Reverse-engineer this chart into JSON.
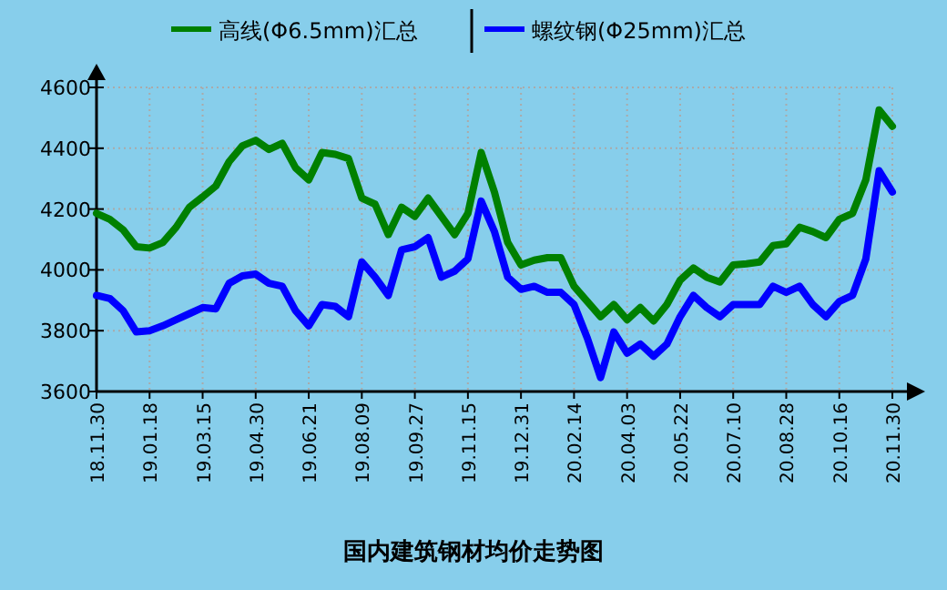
{
  "chart_data": {
    "type": "line",
    "title": "国内建筑钢材均价走势图",
    "categories": [
      "18.11.30",
      null,
      null,
      null,
      "19.01.18",
      null,
      null,
      null,
      "19.03.15",
      null,
      null,
      null,
      "19.04.30",
      null,
      null,
      null,
      "19.06.21",
      null,
      null,
      null,
      "19.08.09",
      null,
      null,
      null,
      "19.09.27",
      null,
      null,
      null,
      "19.11.15",
      null,
      null,
      null,
      "19.12.31",
      null,
      null,
      null,
      "20.02.14",
      null,
      null,
      null,
      "20.04.03",
      null,
      null,
      null,
      "20.05.22",
      null,
      null,
      null,
      "20.07.10",
      null,
      null,
      null,
      "20.08.28",
      null,
      null,
      null,
      "20.10.16",
      null,
      null,
      null,
      "20.11.30"
    ],
    "series": [
      {
        "name": "高线(Φ6.5mm)汇总",
        "color": "#008000",
        "values": [
          4186,
          4166,
          4132,
          4076,
          4072,
          4090,
          4140,
          4206,
          4240,
          4276,
          4356,
          4408,
          4426,
          4396,
          4416,
          4336,
          4296,
          4386,
          4380,
          4366,
          4236,
          4216,
          4116,
          4206,
          4176,
          4236,
          4176,
          4116,
          4186,
          4386,
          4256,
          4090,
          4016,
          4032,
          4040,
          4040,
          3946,
          3896,
          3846,
          3886,
          3836,
          3876,
          3832,
          3886,
          3966,
          4006,
          3976,
          3960,
          4016,
          4020,
          4026,
          4080,
          4086,
          4140,
          4126,
          4106,
          4166,
          4186,
          4296,
          4526,
          4472
        ]
      },
      {
        "name": "螺纹钢(Φ25mm)汇总",
        "color": "#0000ff",
        "values": [
          3916,
          3906,
          3866,
          3796,
          3800,
          3816,
          3836,
          3856,
          3876,
          3872,
          3956,
          3980,
          3986,
          3956,
          3946,
          3866,
          3816,
          3886,
          3880,
          3846,
          4026,
          3976,
          3916,
          4066,
          4076,
          4106,
          3976,
          3996,
          4036,
          4226,
          4126,
          3976,
          3936,
          3946,
          3926,
          3926,
          3886,
          3776,
          3646,
          3796,
          3726,
          3756,
          3716,
          3756,
          3846,
          3916,
          3876,
          3846,
          3886,
          3886,
          3886,
          3946,
          3926,
          3946,
          3886,
          3846,
          3896,
          3916,
          4036,
          4326,
          4256
        ]
      }
    ],
    "ylim": [
      3600,
      4600
    ],
    "yticks": [
      3600,
      3800,
      4000,
      4200,
      4400,
      4600
    ],
    "grid": true,
    "legend": "top"
  }
}
